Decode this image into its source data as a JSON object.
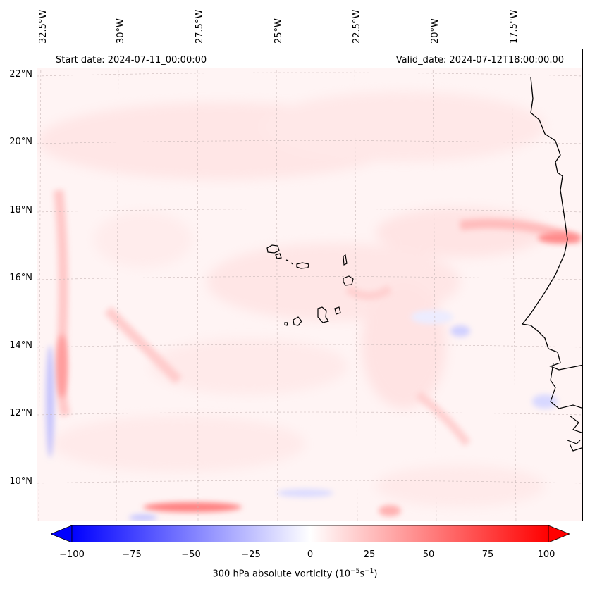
{
  "lon_labels": [
    "32.5°W",
    "30°W",
    "27.5°W",
    "25°W",
    "22.5°W",
    "20°W",
    "17.5°W"
  ],
  "lat_labels": [
    "22°N",
    "20°N",
    "18°N",
    "16°N",
    "14°N",
    "12°N",
    "10°N"
  ],
  "header": {
    "start_date": "Start date: 2024-07-11_00:00:00",
    "valid_date": "Valid_date: 2024-07-12T18:00:00.00"
  },
  "colorbar": {
    "ticks": [
      "−100",
      "−75",
      "−50",
      "−25",
      "0",
      "25",
      "50",
      "75",
      "100"
    ],
    "title": "300 hPa absolute vorticity (10",
    "title_sup1": "−5",
    "title_mid": "s",
    "title_sup2": "−1",
    "title_end": ")",
    "range": [
      -100,
      100
    ],
    "colors": {
      "negative": "#0000ff",
      "zero": "#ffffff",
      "positive": "#ff0000"
    }
  }
}
